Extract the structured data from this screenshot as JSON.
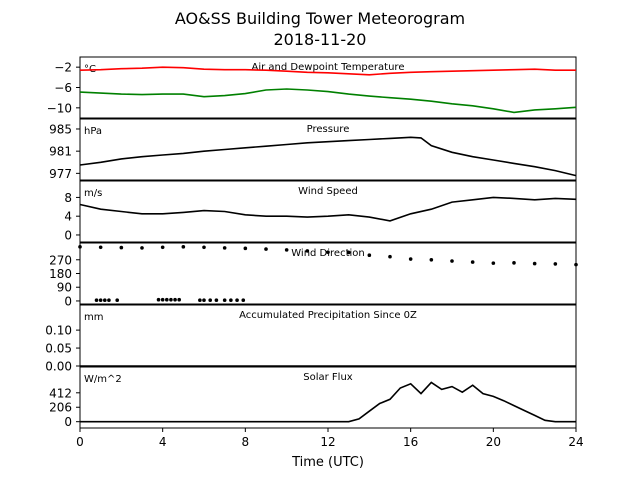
{
  "title_line1": "AO&SS Building Tower Meteorogram",
  "title_line2": "2018-11-20",
  "xlabel": "Time (UTC)",
  "chart_data": [
    {
      "type": "line",
      "title": "Air and Dewpoint Temperature",
      "unit_label": "°C",
      "ylim": [
        -12,
        0
      ],
      "yticks": [
        -2,
        -6,
        -10
      ],
      "ytick_labels": [
        "−2",
        "−6",
        "−10"
      ],
      "series": [
        {
          "color": "#ff0000",
          "x": [
            0,
            1,
            2,
            3,
            4,
            5,
            6,
            7,
            8,
            9,
            10,
            11,
            12,
            13,
            14,
            15,
            16,
            17,
            18,
            19,
            20,
            21,
            22,
            23,
            24
          ],
          "y": [
            -2.6,
            -2.5,
            -2.3,
            -2.2,
            -2.0,
            -2.1,
            -2.4,
            -2.5,
            -2.5,
            -2.6,
            -2.8,
            -3.0,
            -3.1,
            -3.3,
            -3.5,
            -3.2,
            -3.0,
            -2.9,
            -2.8,
            -2.7,
            -2.6,
            -2.5,
            -2.4,
            -2.6,
            -2.6
          ]
        },
        {
          "color": "#008000",
          "x": [
            0,
            1,
            2,
            3,
            4,
            5,
            6,
            7,
            8,
            9,
            10,
            11,
            12,
            13,
            14,
            15,
            16,
            17,
            18,
            19,
            20,
            21,
            22,
            23,
            24
          ],
          "y": [
            -6.9,
            -7.1,
            -7.3,
            -7.4,
            -7.3,
            -7.3,
            -7.8,
            -7.6,
            -7.2,
            -6.5,
            -6.3,
            -6.5,
            -6.8,
            -7.3,
            -7.7,
            -8.0,
            -8.3,
            -8.7,
            -9.2,
            -9.6,
            -10.2,
            -10.9,
            -10.4,
            -10.2,
            -9.9
          ]
        }
      ]
    },
    {
      "type": "line",
      "title": "Pressure",
      "unit_label": "hPa",
      "ylim": [
        975.8,
        986.8
      ],
      "yticks": [
        985,
        981,
        977
      ],
      "ytick_labels": [
        "985",
        "981",
        "977"
      ],
      "series": [
        {
          "color": "#000000",
          "x": [
            0,
            1,
            2,
            3,
            4,
            5,
            6,
            7,
            8,
            9,
            10,
            11,
            12,
            13,
            14,
            15,
            16,
            16.5,
            17,
            18,
            19,
            20,
            21,
            22,
            23,
            24
          ],
          "y": [
            978.5,
            979.0,
            979.6,
            980.0,
            980.3,
            980.6,
            981.0,
            981.3,
            981.6,
            981.9,
            982.2,
            982.5,
            982.7,
            982.9,
            983.1,
            983.3,
            983.5,
            983.4,
            982.0,
            980.8,
            980.0,
            979.4,
            978.8,
            978.2,
            977.5,
            976.6
          ]
        }
      ]
    },
    {
      "type": "line",
      "title": "Wind Speed",
      "unit_label": "m/s",
      "ylim": [
        -1.5,
        11.5
      ],
      "yticks": [
        8,
        4,
        0
      ],
      "ytick_labels": [
        "8",
        "4",
        "0"
      ],
      "series": [
        {
          "color": "#000000",
          "x": [
            0,
            1,
            2,
            3,
            4,
            5,
            6,
            7,
            8,
            9,
            10,
            11,
            12,
            13,
            14,
            15,
            16,
            17,
            18,
            19,
            20,
            21,
            22,
            23,
            24
          ],
          "y": [
            6.5,
            5.5,
            5.0,
            4.5,
            4.5,
            4.8,
            5.2,
            5.0,
            4.3,
            4.0,
            4.0,
            3.8,
            4.0,
            4.3,
            3.8,
            3.0,
            4.5,
            5.5,
            7.0,
            7.5,
            8.0,
            7.8,
            7.5,
            7.8,
            7.6
          ]
        }
      ]
    },
    {
      "type": "scatter",
      "title": "Wind Direction",
      "unit_label": "",
      "ylim": [
        -20,
        380
      ],
      "yticks": [
        270,
        180,
        90,
        0
      ],
      "ytick_labels": [
        "270",
        "180",
        "90",
        "0"
      ],
      "series": [
        {
          "color": "#000000",
          "x": [
            0,
            1,
            2,
            3,
            4,
            5,
            6,
            7,
            8,
            9,
            10,
            11,
            12,
            13,
            14,
            15,
            16,
            17,
            18,
            19,
            20,
            21,
            22,
            23,
            24
          ],
          "y": [
            355,
            352,
            350,
            348,
            352,
            355,
            352,
            348,
            345,
            340,
            335,
            328,
            320,
            318,
            300,
            290,
            275,
            270,
            262,
            255,
            248,
            250,
            245,
            243,
            238
          ]
        },
        {
          "color": "#000000",
          "x": [
            0.8,
            1.0,
            1.2,
            1.4,
            1.8,
            3.8,
            4.0,
            4.2,
            4.4,
            4.6,
            4.8,
            5.8,
            6.0,
            6.3,
            6.6,
            7.0,
            7.3,
            7.6,
            7.9
          ],
          "y": [
            5,
            5,
            5,
            5,
            5,
            8,
            8,
            8,
            8,
            8,
            8,
            5,
            5,
            5,
            5,
            5,
            5,
            5,
            5
          ]
        }
      ]
    },
    {
      "type": "line",
      "title": "Accumulated Precipitation Since 0Z",
      "unit_label": "mm",
      "ylim": [
        0,
        0.17
      ],
      "yticks": [
        0.1,
        0.05,
        0.0
      ],
      "ytick_labels": [
        "0.10",
        "0.05",
        "0.00"
      ],
      "series": [
        {
          "color": "#000000",
          "x": [
            0,
            24
          ],
          "y": [
            0,
            0
          ]
        }
      ]
    },
    {
      "type": "line",
      "title": "Solar Flux",
      "unit_label": "W/m^2",
      "ylim": [
        -90,
        780
      ],
      "yticks": [
        412,
        206,
        0
      ],
      "ytick_labels": [
        "412",
        "206",
        "0"
      ],
      "series": [
        {
          "color": "#000000",
          "x": [
            0,
            13,
            13.5,
            14,
            14.5,
            15,
            15.5,
            16,
            16.5,
            17,
            17.5,
            18,
            18.5,
            19,
            19.5,
            20,
            20.5,
            21,
            21.5,
            22,
            22.5,
            23,
            24
          ],
          "y": [
            0,
            0,
            40,
            150,
            260,
            320,
            480,
            540,
            400,
            560,
            460,
            500,
            420,
            520,
            400,
            360,
            300,
            230,
            160,
            90,
            20,
            0,
            0
          ]
        }
      ]
    }
  ],
  "xaxis": {
    "xlim": [
      0,
      24
    ],
    "xticks": [
      0,
      4,
      8,
      12,
      16,
      20,
      24
    ],
    "xtick_labels": [
      "0",
      "4",
      "8",
      "12",
      "16",
      "20",
      "24"
    ]
  }
}
